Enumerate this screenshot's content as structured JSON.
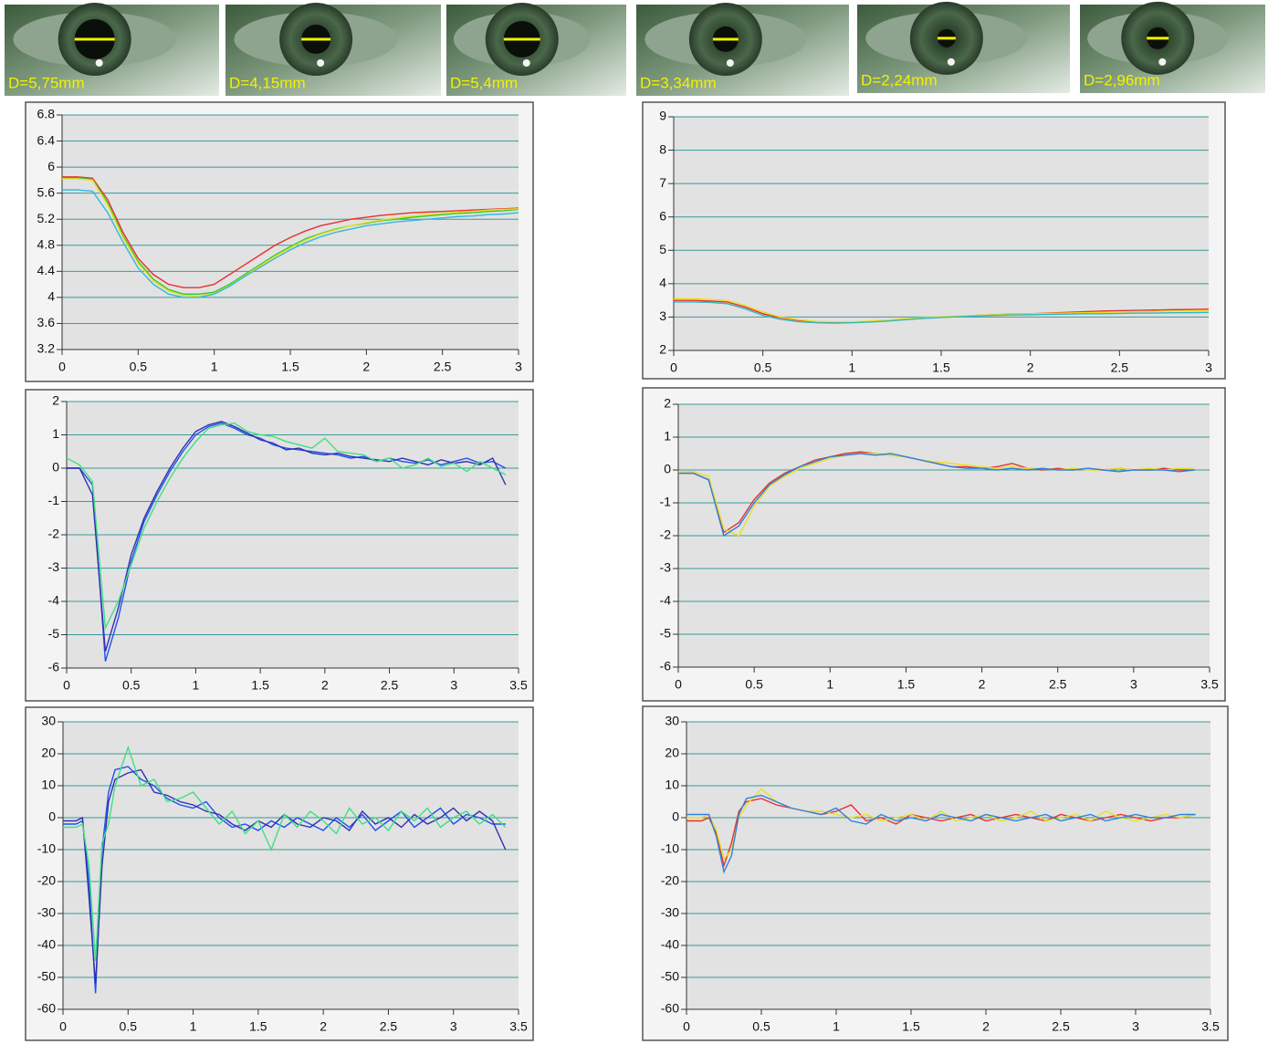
{
  "images": [
    "D=5,75mm",
    "D=4,15mm",
    "D=5,4mm",
    "D=3,34mm",
    "D=2,24mm",
    "D=2,96mm"
  ],
  "chart_data": [
    {
      "type": "line",
      "grid": true,
      "xlim": [
        0,
        3
      ],
      "xticks": [
        0,
        0.5,
        1,
        1.5,
        2,
        2.5,
        3
      ],
      "ylim": [
        3.2,
        6.8
      ],
      "yticks": [
        3.2,
        3.6,
        4,
        4.4,
        4.8,
        5.2,
        5.6,
        6,
        6.4,
        6.8
      ],
      "x": [
        0,
        0.1,
        0.2,
        0.3,
        0.4,
        0.5,
        0.6,
        0.7,
        0.8,
        0.9,
        1,
        1.1,
        1.2,
        1.3,
        1.4,
        1.5,
        1.6,
        1.7,
        1.8,
        1.9,
        2,
        2.1,
        2.2,
        2.3,
        2.4,
        2.5,
        2.6,
        2.7,
        2.8,
        2.9,
        3
      ],
      "series": [
        {
          "color": "#e83030",
          "values": [
            5.85,
            5.85,
            5.83,
            5.5,
            5.0,
            4.6,
            4.35,
            4.2,
            4.15,
            4.15,
            4.2,
            4.35,
            4.5,
            4.65,
            4.8,
            4.92,
            5.02,
            5.1,
            5.15,
            5.2,
            5.23,
            5.26,
            5.28,
            5.3,
            5.31,
            5.32,
            5.33,
            5.34,
            5.35,
            5.36,
            5.37
          ]
        },
        {
          "color": "#30c830",
          "values": [
            5.83,
            5.83,
            5.81,
            5.45,
            4.95,
            4.55,
            4.28,
            4.12,
            4.05,
            4.05,
            4.08,
            4.2,
            4.35,
            4.5,
            4.65,
            4.78,
            4.9,
            4.98,
            5.05,
            5.1,
            5.14,
            5.18,
            5.2,
            5.23,
            5.25,
            5.27,
            5.29,
            5.3,
            5.32,
            5.33,
            5.35
          ]
        },
        {
          "color": "#e8e020",
          "values": [
            5.82,
            5.82,
            5.8,
            5.42,
            4.92,
            4.52,
            4.25,
            4.1,
            4.03,
            4.02,
            4.06,
            4.18,
            4.33,
            4.48,
            4.63,
            4.76,
            4.88,
            4.97,
            5.04,
            5.1,
            5.15,
            5.19,
            5.22,
            5.25,
            5.27,
            5.29,
            5.31,
            5.32,
            5.34,
            5.35,
            5.36
          ]
        },
        {
          "color": "#30b8e0",
          "values": [
            5.65,
            5.65,
            5.63,
            5.3,
            4.85,
            4.45,
            4.2,
            4.05,
            4.0,
            4.0,
            4.05,
            4.17,
            4.32,
            4.46,
            4.6,
            4.73,
            4.84,
            4.93,
            5.0,
            5.05,
            5.1,
            5.13,
            5.16,
            5.18,
            5.2,
            5.22,
            5.24,
            5.25,
            5.27,
            5.28,
            5.3
          ]
        }
      ]
    },
    {
      "type": "line",
      "grid": true,
      "xlim": [
        0,
        3
      ],
      "xticks": [
        0,
        0.5,
        1,
        1.5,
        2,
        2.5,
        3
      ],
      "ylim": [
        2,
        9
      ],
      "yticks": [
        2,
        3,
        4,
        5,
        6,
        7,
        8,
        9
      ],
      "x": [
        0,
        0.1,
        0.2,
        0.3,
        0.4,
        0.5,
        0.6,
        0.7,
        0.8,
        0.9,
        1,
        1.1,
        1.2,
        1.3,
        1.4,
        1.5,
        1.6,
        1.7,
        1.8,
        1.9,
        2,
        2.1,
        2.2,
        2.3,
        2.4,
        2.5,
        2.6,
        2.7,
        2.8,
        2.9,
        3
      ],
      "series": [
        {
          "color": "#e83030",
          "values": [
            3.5,
            3.5,
            3.48,
            3.45,
            3.3,
            3.1,
            2.98,
            2.9,
            2.86,
            2.85,
            2.85,
            2.87,
            2.9,
            2.93,
            2.97,
            3.0,
            3.02,
            3.05,
            3.07,
            3.09,
            3.1,
            3.12,
            3.14,
            3.16,
            3.18,
            3.19,
            3.2,
            3.21,
            3.22,
            3.23,
            3.24
          ]
        },
        {
          "color": "#e8e020",
          "values": [
            3.55,
            3.55,
            3.53,
            3.5,
            3.35,
            3.15,
            3.0,
            2.92,
            2.87,
            2.86,
            2.86,
            2.88,
            2.91,
            2.95,
            2.98,
            3.01,
            3.03,
            3.05,
            3.07,
            3.08,
            3.1,
            3.11,
            3.12,
            3.13,
            3.14,
            3.15,
            3.16,
            3.17,
            3.18,
            3.18,
            3.19
          ]
        },
        {
          "color": "#30b8c0",
          "values": [
            3.45,
            3.45,
            3.44,
            3.4,
            3.25,
            3.05,
            2.93,
            2.86,
            2.83,
            2.82,
            2.83,
            2.85,
            2.88,
            2.92,
            2.96,
            2.99,
            3.01,
            3.03,
            3.05,
            3.06,
            3.07,
            3.08,
            3.09,
            3.1,
            3.1,
            3.11,
            3.12,
            3.12,
            3.13,
            3.13,
            3.14
          ]
        }
      ]
    },
    {
      "type": "line",
      "grid": true,
      "xlim": [
        0,
        3.5
      ],
      "xticks": [
        0,
        0.5,
        1,
        1.5,
        2,
        2.5,
        3,
        3.5
      ],
      "ylim": [
        -6,
        2
      ],
      "yticks": [
        -6,
        -5,
        -4,
        -3,
        -2,
        -1,
        0,
        1,
        2
      ],
      "x": [
        0,
        0.1,
        0.2,
        0.3,
        0.4,
        0.5,
        0.6,
        0.7,
        0.8,
        0.9,
        1,
        1.1,
        1.2,
        1.3,
        1.4,
        1.5,
        1.6,
        1.7,
        1.8,
        1.9,
        2,
        2.1,
        2.2,
        2.3,
        2.4,
        2.5,
        2.6,
        2.7,
        2.8,
        2.9,
        3,
        3.1,
        3.2,
        3.3,
        3.4
      ],
      "series": [
        {
          "color": "#2050f0",
          "values": [
            0,
            0,
            -0.5,
            -5.8,
            -4.5,
            -2.8,
            -1.6,
            -0.8,
            -0.1,
            0.5,
            1.0,
            1.25,
            1.35,
            1.2,
            1.0,
            0.9,
            0.7,
            0.6,
            0.55,
            0.5,
            0.45,
            0.4,
            0.3,
            0.35,
            0.2,
            0.3,
            0.2,
            0.15,
            0.25,
            0.1,
            0.2,
            0.3,
            0.15,
            0.2,
            0.0
          ]
        },
        {
          "color": "#3030b0",
          "values": [
            0,
            0,
            -0.8,
            -5.5,
            -4.2,
            -2.6,
            -1.5,
            -0.7,
            0.0,
            0.6,
            1.1,
            1.3,
            1.4,
            1.25,
            1.05,
            0.85,
            0.75,
            0.55,
            0.6,
            0.45,
            0.4,
            0.45,
            0.35,
            0.3,
            0.25,
            0.2,
            0.3,
            0.2,
            0.1,
            0.25,
            0.15,
            0.2,
            0.1,
            0.3,
            -0.5
          ]
        },
        {
          "color": "#40e080",
          "values": [
            0.3,
            0.1,
            -0.4,
            -4.8,
            -4.0,
            -2.9,
            -1.8,
            -1.0,
            -0.3,
            0.3,
            0.8,
            1.2,
            1.3,
            1.35,
            1.1,
            1.0,
            0.95,
            0.8,
            0.7,
            0.6,
            0.9,
            0.5,
            0.45,
            0.4,
            0.2,
            0.3,
            0.0,
            0.1,
            0.3,
            0.05,
            0.15,
            -0.1,
            0.2,
            0.0,
            -0.2
          ]
        }
      ]
    },
    {
      "type": "line",
      "grid": true,
      "xlim": [
        0,
        3.5
      ],
      "xticks": [
        0,
        0.5,
        1,
        1.5,
        2,
        2.5,
        3,
        3.5
      ],
      "ylim": [
        -6,
        2
      ],
      "yticks": [
        -6,
        -5,
        -4,
        -3,
        -2,
        -1,
        0,
        1,
        2
      ],
      "x": [
        0,
        0.1,
        0.2,
        0.3,
        0.4,
        0.5,
        0.6,
        0.7,
        0.8,
        0.9,
        1,
        1.1,
        1.2,
        1.3,
        1.4,
        1.5,
        1.6,
        1.7,
        1.8,
        1.9,
        2,
        2.1,
        2.2,
        2.3,
        2.4,
        2.5,
        2.6,
        2.7,
        2.8,
        2.9,
        3,
        3.1,
        3.2,
        3.3,
        3.4
      ],
      "series": [
        {
          "color": "#e83030",
          "values": [
            -0.1,
            -0.1,
            -0.3,
            -1.9,
            -1.6,
            -0.9,
            -0.4,
            -0.1,
            0.1,
            0.3,
            0.4,
            0.5,
            0.55,
            0.5,
            0.45,
            0.4,
            0.3,
            0.2,
            0.1,
            0.1,
            0.05,
            0.1,
            0.2,
            0.05,
            0.0,
            0.05,
            0.0,
            0.05,
            0.0,
            0.05,
            0.0,
            0.0,
            0.05,
            0.0,
            0.0
          ]
        },
        {
          "color": "#e8e020",
          "values": [
            -0.05,
            -0.05,
            -0.2,
            -1.8,
            -2.0,
            -1.1,
            -0.5,
            -0.2,
            0.05,
            0.2,
            0.35,
            0.45,
            0.5,
            0.5,
            0.45,
            0.4,
            0.3,
            0.25,
            0.2,
            0.15,
            0.1,
            0.05,
            0.1,
            0.05,
            0.05,
            0.0,
            0.05,
            0.0,
            0.0,
            0.05,
            0.0,
            0.05,
            0.0,
            0.05,
            0.05
          ]
        },
        {
          "color": "#3080e0",
          "values": [
            -0.1,
            -0.1,
            -0.3,
            -2.0,
            -1.7,
            -1.0,
            -0.45,
            -0.15,
            0.1,
            0.25,
            0.4,
            0.45,
            0.5,
            0.45,
            0.5,
            0.4,
            0.3,
            0.2,
            0.1,
            0.05,
            0.05,
            0.0,
            0.05,
            0.0,
            0.05,
            0.0,
            0.0,
            0.05,
            0.0,
            -0.05,
            0.0,
            0.0,
            0.0,
            -0.05,
            0.0
          ]
        }
      ]
    },
    {
      "type": "line",
      "grid": true,
      "xlim": [
        0,
        3.5
      ],
      "xticks": [
        0,
        0.5,
        1,
        1.5,
        2,
        2.5,
        3,
        3.5
      ],
      "ylim": [
        -60,
        30
      ],
      "yticks": [
        -60,
        -50,
        -40,
        -30,
        -20,
        -10,
        0,
        10,
        20,
        30
      ],
      "x": [
        0,
        0.1,
        0.15,
        0.2,
        0.25,
        0.3,
        0.35,
        0.4,
        0.5,
        0.6,
        0.7,
        0.8,
        0.9,
        1,
        1.1,
        1.2,
        1.3,
        1.4,
        1.5,
        1.6,
        1.7,
        1.8,
        1.9,
        2,
        2.1,
        2.2,
        2.3,
        2.4,
        2.5,
        2.6,
        2.7,
        2.8,
        2.9,
        3,
        3.1,
        3.2,
        3.3,
        3.4
      ],
      "series": [
        {
          "color": "#2050f0",
          "values": [
            -2,
            -2,
            -1,
            -20,
            -55,
            -10,
            8,
            15,
            16,
            12,
            10,
            6,
            4,
            3,
            5,
            0,
            -3,
            -2,
            -4,
            -1,
            -3,
            0,
            -2,
            -4,
            0,
            -3,
            1,
            -4,
            -1,
            2,
            -3,
            0,
            3,
            -2,
            1,
            0,
            -2,
            -2
          ]
        },
        {
          "color": "#3030b0",
          "values": [
            -1,
            -1,
            0,
            -25,
            -52,
            -15,
            5,
            12,
            14,
            15,
            8,
            7,
            5,
            4,
            2,
            1,
            -2,
            -4,
            -1,
            -3,
            1,
            -2,
            -3,
            0,
            -1,
            -4,
            2,
            -2,
            0,
            -3,
            1,
            -2,
            0,
            3,
            -1,
            2,
            -1,
            -10
          ]
        },
        {
          "color": "#40e080",
          "values": [
            -3,
            -3,
            -2,
            -15,
            -45,
            -8,
            -2,
            10,
            22,
            10,
            12,
            5,
            6,
            8,
            3,
            -2,
            2,
            -5,
            -1,
            -10,
            1,
            -3,
            2,
            -1,
            -5,
            3,
            -2,
            0,
            -4,
            2,
            -1,
            3,
            -3,
            0,
            2,
            -2,
            1,
            -3
          ]
        }
      ]
    },
    {
      "type": "line",
      "grid": true,
      "xlim": [
        0,
        3.5
      ],
      "xticks": [
        0,
        0.5,
        1,
        1.5,
        2,
        2.5,
        3,
        3.5
      ],
      "ylim": [
        -60,
        30
      ],
      "yticks": [
        -60,
        -50,
        -40,
        -30,
        -20,
        -10,
        0,
        10,
        20,
        30
      ],
      "x": [
        0,
        0.1,
        0.15,
        0.2,
        0.25,
        0.3,
        0.35,
        0.4,
        0.5,
        0.6,
        0.7,
        0.8,
        0.9,
        1,
        1.1,
        1.2,
        1.3,
        1.4,
        1.5,
        1.6,
        1.7,
        1.8,
        1.9,
        2,
        2.1,
        2.2,
        2.3,
        2.4,
        2.5,
        2.6,
        2.7,
        2.8,
        2.9,
        3,
        3.1,
        3.2,
        3.3,
        3.4
      ],
      "series": [
        {
          "color": "#e83030",
          "values": [
            -1,
            -1,
            0,
            -5,
            -15,
            -8,
            2,
            5,
            6,
            4,
            3,
            2,
            1,
            2,
            4,
            -1,
            0,
            -2,
            1,
            0,
            -1,
            0,
            1,
            -1,
            0,
            1,
            0,
            -1,
            1,
            0,
            -1,
            0,
            1,
            0,
            -1,
            0,
            0,
            1
          ]
        },
        {
          "color": "#e8e020",
          "values": [
            0,
            0,
            1,
            -4,
            -13,
            -10,
            0,
            4,
            9,
            5,
            3,
            2,
            2,
            1,
            0,
            1,
            -1,
            0,
            1,
            -1,
            2,
            -1,
            0,
            1,
            -1,
            0,
            2,
            -1,
            0,
            1,
            -1,
            2,
            0,
            -1,
            0,
            1,
            0,
            1
          ]
        },
        {
          "color": "#3080e0",
          "values": [
            1,
            1,
            1,
            -6,
            -17,
            -12,
            1,
            6,
            7,
            5,
            3,
            2,
            1,
            3,
            -1,
            -2,
            1,
            -1,
            0,
            -1,
            1,
            0,
            -1,
            1,
            0,
            -1,
            0,
            1,
            -1,
            0,
            1,
            -1,
            0,
            1,
            0,
            0,
            1,
            1
          ]
        }
      ]
    }
  ]
}
